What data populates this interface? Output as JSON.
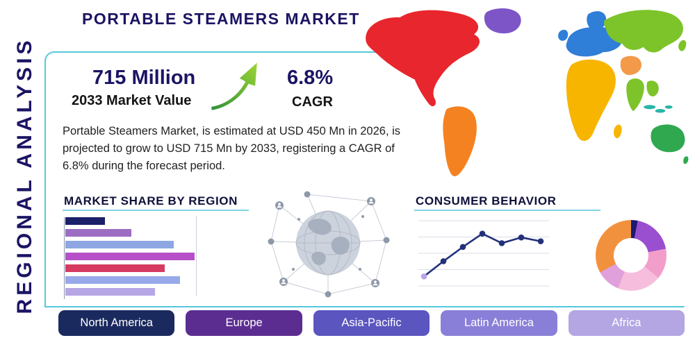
{
  "page": {
    "title": "PORTABLE STEAMERS MARKET",
    "side_label": "REGIONAL ANALYSIS"
  },
  "highlight": {
    "market_value": "715 Million",
    "market_value_label": "2033 Market Value",
    "cagr_value": "6.8%",
    "cagr_label": "CAGR",
    "description": "Portable Steamers Market, is estimated at USD 450 Mn in 2026, is projected to grow to USD 715 Mn by 2033, registering a CAGR of 6.8% during the forecast period."
  },
  "sections": {
    "market_share": {
      "title": "MARKET SHARE BY REGION"
    },
    "consumer_behavior": {
      "title": "CONSUMER BEHAVIOR"
    }
  },
  "region_buttons": [
    {
      "label": "North America",
      "color": "#1b2a5e"
    },
    {
      "label": "Europe",
      "color": "#5c2d91"
    },
    {
      "label": "Asia-Pacific",
      "color": "#5b55c0"
    },
    {
      "label": "Latin America",
      "color": "#8a7fd8"
    },
    {
      "label": "Africa",
      "color": "#b3a6e3"
    }
  ],
  "colors": {
    "accent_navy": "#1b1464",
    "accent_teal": "#56c7dc",
    "arrow_green_dark": "#2e8f3a",
    "arrow_green_light": "#9ed636",
    "text_dark": "#1f1f1f"
  },
  "map": {
    "region_colors": {
      "north-america": "#e8262d",
      "greenland": "#7d55c7",
      "south-america": "#f58220",
      "europe": "#2f7ed8",
      "uk": "#2f7ed8",
      "scandinavia": "#2f7ed8",
      "africa": "#f7b500",
      "madagascar": "#f7b500",
      "middle-east": "#f2994a",
      "asia": "#7dc42a",
      "india": "#7dc42a",
      "southeast-asia": "#7dc42a",
      "japan": "#7dc42a",
      "indonesia": "#29b5a8",
      "australia": "#2fa84f",
      "new-zealand": "#2fa84f"
    }
  },
  "chart_data": [
    {
      "type": "bar",
      "name": "market-share-by-region",
      "title": "MARKET SHARE BY REGION",
      "orientation": "horizontal",
      "values_relative_percent": [
        30,
        50,
        82,
        98,
        75,
        87,
        68
      ],
      "colors": [
        "#1b2068",
        "#9d6cc3",
        "#8ea6e2",
        "#b750c8",
        "#d63a60",
        "#97a9e8",
        "#b7a6e6"
      ],
      "xlim": [
        0,
        100
      ],
      "grid": true
    },
    {
      "type": "line",
      "name": "consumer-behavior",
      "title": "CONSUMER BEHAVIOR",
      "x": [
        1,
        2,
        3,
        4,
        5,
        6,
        7
      ],
      "y": [
        1.0,
        2.6,
        4.1,
        5.5,
        4.5,
        5.1,
        4.7
      ],
      "ylim": [
        0,
        6.5
      ],
      "grid": true,
      "line_color": "#23307a",
      "point_color": "#23307a",
      "first_point_color": "#b7a6e6"
    },
    {
      "type": "pie",
      "name": "regional-share-donut",
      "style": "donut",
      "values": [
        3,
        19,
        14,
        20,
        11,
        33
      ],
      "colors": [
        "#1b1b6f",
        "#9a4fd0",
        "#f29ecb",
        "#f6bedc",
        "#e0a0dc",
        "#f2913d"
      ]
    }
  ]
}
